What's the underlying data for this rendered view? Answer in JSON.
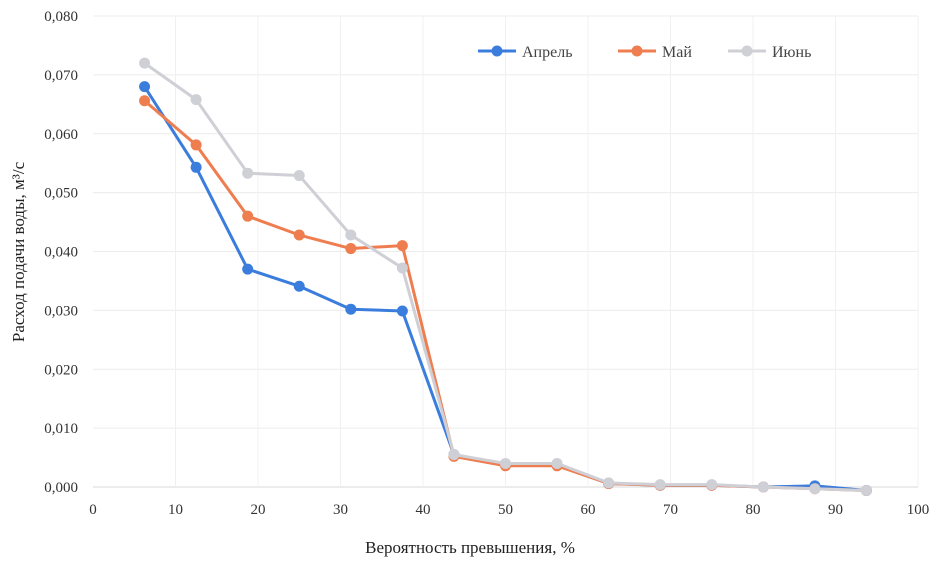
{
  "chart_data": {
    "type": "line",
    "title": "",
    "xlabel": "Вероятность превышения, %",
    "ylabel": "Расход подачи воды, м³/с",
    "xlim": [
      0,
      100
    ],
    "ylim": [
      0,
      0.08
    ],
    "x_ticks": [
      "0",
      "10",
      "20",
      "30",
      "40",
      "50",
      "60",
      "70",
      "80",
      "90",
      "100"
    ],
    "y_ticks": [
      "0,000",
      "0,010",
      "0,020",
      "0,030",
      "0,040",
      "0,050",
      "0,060",
      "0,070",
      "0,080"
    ],
    "grid": true,
    "legend_position": "top-right",
    "x": [
      6.25,
      12.5,
      18.75,
      25,
      31.25,
      37.5,
      43.75,
      50,
      56.25,
      62.5,
      68.75,
      75,
      81.25,
      87.5,
      93.75
    ],
    "series": [
      {
        "name": "Апрель",
        "color": "#3b7ddd",
        "values": [
          0.068,
          0.0543,
          0.037,
          0.0341,
          0.0302,
          0.0299,
          0.0055,
          0.0038,
          0.0037,
          0.0006,
          0.0003,
          0.0003,
          0.0,
          0.0002,
          -0.0006
        ]
      },
      {
        "name": "Май",
        "color": "#ee7d4f",
        "values": [
          0.0656,
          0.0581,
          0.046,
          0.0428,
          0.0405,
          0.041,
          0.0052,
          0.0036,
          0.0036,
          0.0006,
          0.0003,
          0.0003,
          0.0,
          -0.0003,
          -0.0006
        ]
      },
      {
        "name": "Июнь",
        "color": "#cfcfd6",
        "values": [
          0.072,
          0.0658,
          0.0533,
          0.0529,
          0.0428,
          0.0372,
          0.0055,
          0.004,
          0.004,
          0.0007,
          0.0004,
          0.0004,
          0.0,
          -0.0003,
          -0.0006
        ]
      }
    ]
  }
}
